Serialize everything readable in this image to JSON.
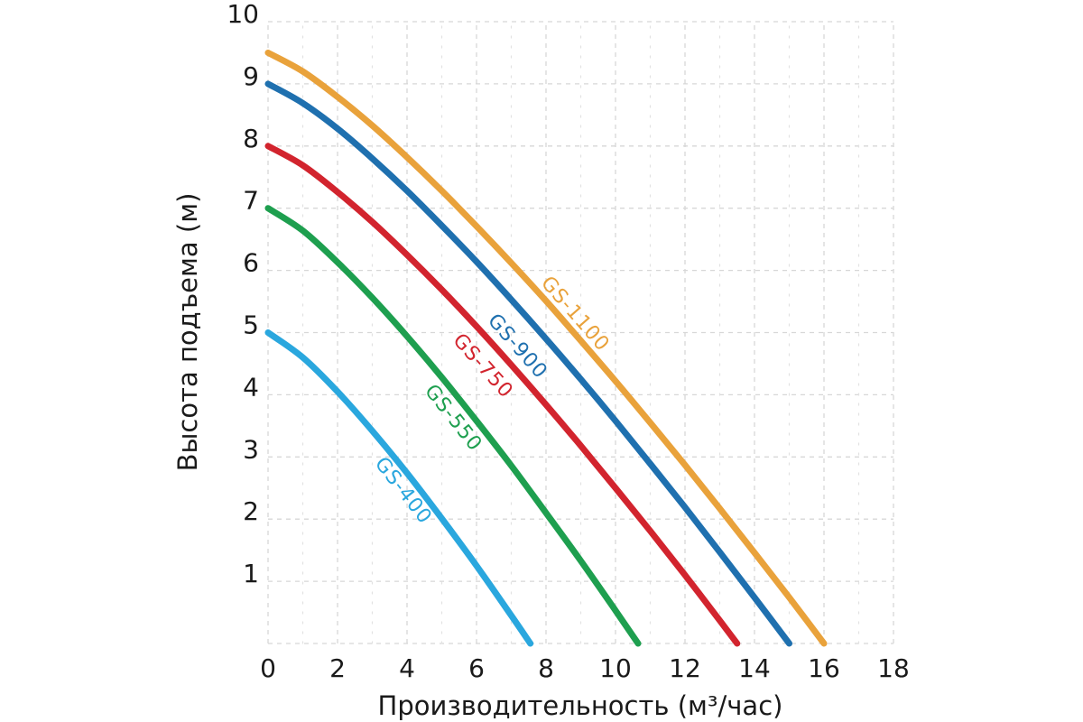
{
  "chart_data": {
    "type": "line",
    "xlabel": "Производительность (м³/час)",
    "ylabel": "Высота подъема (м)",
    "xlim": [
      0,
      18
    ],
    "ylim": [
      0,
      10
    ],
    "x_major_ticks": [
      0,
      2,
      4,
      6,
      8,
      10,
      12,
      14,
      16,
      18
    ],
    "x_minor_ticks": [
      1,
      3,
      5,
      7,
      9,
      11,
      13,
      15,
      17
    ],
    "y_grid_lines": [
      0,
      1,
      2,
      3,
      4,
      5,
      6,
      7,
      8,
      9,
      10
    ],
    "y_tick_labels": [
      1,
      2,
      3,
      4,
      5,
      6,
      7,
      8,
      9,
      10
    ],
    "grid": "dashed",
    "legend_position": "inline-curve-labels",
    "colors": {
      "background": "#ffffff",
      "grid_major": "#d7d7d7",
      "grid_minor": "#e2e2e2",
      "text": "#1a1a1a"
    },
    "series": [
      {
        "name": "GS-1100",
        "color": "#e9a23b",
        "label_q": 8.55,
        "label_side": "above",
        "label_dist": 14,
        "points": [
          [
            0,
            9.5
          ],
          [
            1,
            9.2
          ],
          [
            2,
            8.79
          ],
          [
            3,
            8.33
          ],
          [
            4,
            7.82
          ],
          [
            5,
            7.28
          ],
          [
            6,
            6.71
          ],
          [
            7,
            6.12
          ],
          [
            8,
            5.51
          ],
          [
            9,
            4.87
          ],
          [
            10,
            4.22
          ],
          [
            11,
            3.55
          ],
          [
            12,
            2.87
          ],
          [
            13,
            2.17
          ],
          [
            14,
            1.46
          ],
          [
            15,
            0.74
          ],
          [
            16,
            0
          ]
        ]
      },
      {
        "name": "GS-900",
        "color": "#1f70af",
        "label_q": 7.75,
        "label_side": "below",
        "label_dist": 30,
        "points": [
          [
            0,
            9
          ],
          [
            1,
            8.69
          ],
          [
            2,
            8.28
          ],
          [
            3,
            7.8
          ],
          [
            4,
            7.28
          ],
          [
            5,
            6.72
          ],
          [
            6,
            6.14
          ],
          [
            7,
            5.53
          ],
          [
            8,
            4.9
          ],
          [
            9,
            4.25
          ],
          [
            10,
            3.58
          ],
          [
            11,
            2.89
          ],
          [
            12,
            2.19
          ],
          [
            13,
            1.47
          ],
          [
            14,
            0.74
          ],
          [
            15,
            0
          ]
        ]
      },
      {
        "name": "GS-750",
        "color": "#d2242e",
        "label_q": 6.65,
        "label_side": "below",
        "label_dist": 25,
        "points": [
          [
            0,
            8
          ],
          [
            1,
            7.69
          ],
          [
            2,
            7.26
          ],
          [
            3,
            6.78
          ],
          [
            4,
            6.25
          ],
          [
            5,
            5.69
          ],
          [
            6,
            5.1
          ],
          [
            7,
            4.48
          ],
          [
            8,
            3.84
          ],
          [
            9,
            3.18
          ],
          [
            10,
            2.5
          ],
          [
            11,
            1.81
          ],
          [
            12,
            1.1
          ],
          [
            13,
            0.37
          ],
          [
            13.5,
            0
          ]
        ]
      },
      {
        "name": "GS-550",
        "color": "#1e9f4f",
        "label_q": 5.7,
        "label_side": "below",
        "label_dist": 19,
        "points": [
          [
            0,
            7
          ],
          [
            1,
            6.64
          ],
          [
            2,
            6.13
          ],
          [
            3,
            5.56
          ],
          [
            4,
            4.94
          ],
          [
            5,
            4.28
          ],
          [
            6,
            3.58
          ],
          [
            7,
            2.86
          ],
          [
            8,
            2.1
          ],
          [
            9,
            1.33
          ],
          [
            10,
            0.53
          ],
          [
            10.65,
            0
          ]
        ]
      },
      {
        "name": "GS-400",
        "color": "#2aa7de",
        "label_q": 4.2,
        "label_side": "below",
        "label_dist": 16,
        "points": [
          [
            0,
            5
          ],
          [
            1,
            4.6
          ],
          [
            2,
            4.05
          ],
          [
            3,
            3.42
          ],
          [
            4,
            2.74
          ],
          [
            5,
            2.01
          ],
          [
            6,
            1.25
          ],
          [
            7,
            0.45
          ],
          [
            7.55,
            0
          ]
        ]
      }
    ]
  }
}
